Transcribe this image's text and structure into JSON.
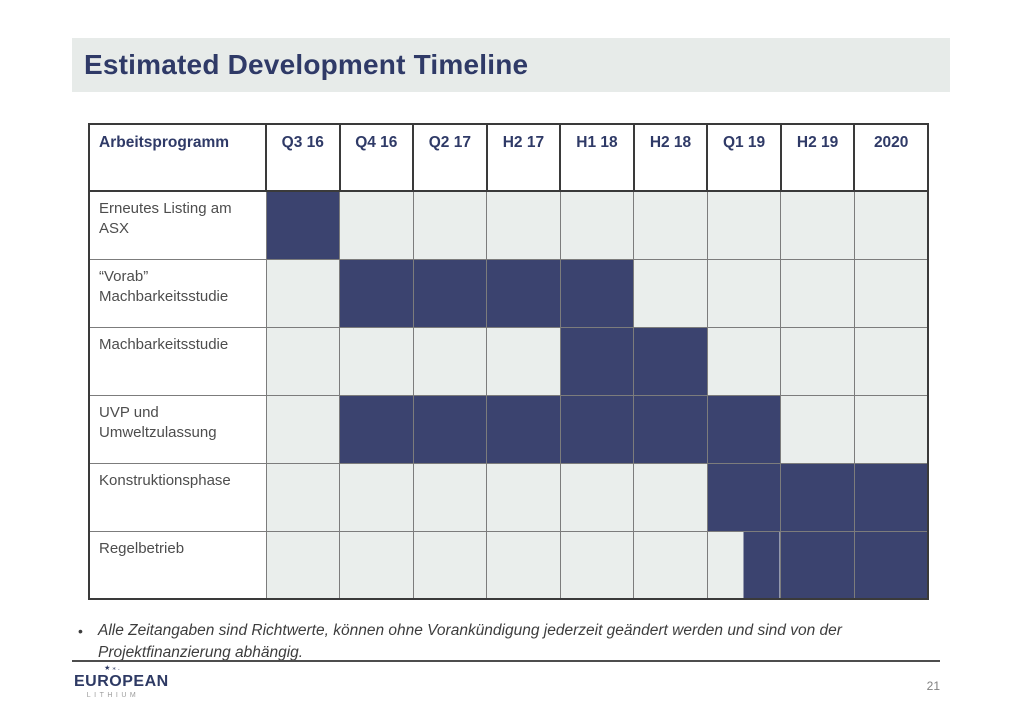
{
  "slide": {
    "title": "Estimated Development Timeline",
    "footnote": {
      "bullet": "•",
      "text": "Alle Zeitangaben sind Richtwerte, können ohne Vorankündigung jederzeit geändert werden und sind von der Projektfinanzierung abhängig."
    },
    "page_number": "21",
    "logo": {
      "stars": "★⁎.",
      "primary": "EUROPEAN",
      "secondary": "LITHIUM"
    }
  },
  "colors": {
    "fill_navy": "#3b436f",
    "cell_empty_grey": "#eaeeec",
    "banner_grey": "#e7ebe9",
    "heading_navy": "#2f3a67",
    "label_grey": "#4d4d4d"
  },
  "chart_data": {
    "type": "table",
    "subtype": "gantt-timeline",
    "title": "Estimated Development Timeline",
    "label_header": "Arbeitsprogramm",
    "columns": [
      "Q3 16",
      "Q4 16",
      "Q2 17",
      "H2 17",
      "H1 18",
      "H2 18",
      "Q1 19",
      "H2 19",
      "2020"
    ],
    "legend": "fills: 1 = active period (navy), 0.5 = active from mid-period, 0 = inactive (grey)",
    "rows": [
      {
        "label": "Erneutes Listing am ASX",
        "fills": [
          1,
          0,
          0,
          0,
          0,
          0,
          0,
          0,
          0
        ]
      },
      {
        "label": "“Vorab” Machbarkeitsstudie",
        "fills": [
          0,
          1,
          1,
          1,
          1,
          0,
          0,
          0,
          0
        ]
      },
      {
        "label": "Machbarkeitsstudie",
        "fills": [
          0,
          0,
          0,
          0,
          1,
          1,
          0,
          0,
          0
        ]
      },
      {
        "label": "UVP und Umweltzulassung",
        "fills": [
          0,
          1,
          1,
          1,
          1,
          1,
          1,
          0,
          0
        ]
      },
      {
        "label": "Konstruktionsphase",
        "fills": [
          0,
          0,
          0,
          0,
          0,
          0,
          1,
          1,
          1
        ]
      },
      {
        "label": "Regelbetrieb",
        "fills": [
          0,
          0,
          0,
          0,
          0,
          0,
          0.5,
          1,
          1
        ]
      }
    ]
  }
}
